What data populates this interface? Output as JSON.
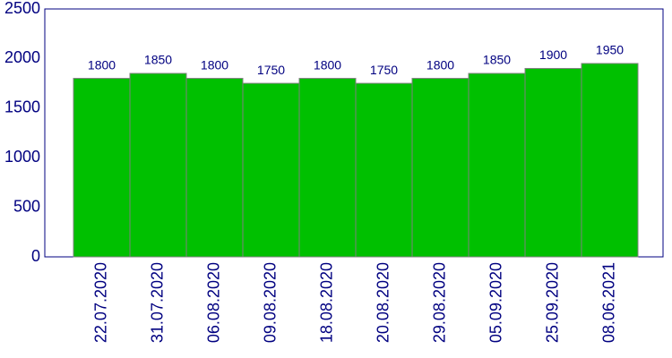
{
  "chart_data": {
    "type": "bar",
    "categories": [
      "22.07.2020",
      "31.07.2020",
      "06.08.2020",
      "09.08.2020",
      "18.08.2020",
      "20.08.2020",
      "29.08.2020",
      "05.09.2020",
      "25.09.2020",
      "08.06.2021"
    ],
    "values": [
      1800,
      1850,
      1800,
      1750,
      1800,
      1750,
      1800,
      1850,
      1900,
      1950
    ],
    "color": "#00c000",
    "ylim": [
      0,
      2500
    ],
    "yticks": [
      0,
      500,
      1000,
      1500,
      2000,
      2500
    ],
    "grid": false
  }
}
